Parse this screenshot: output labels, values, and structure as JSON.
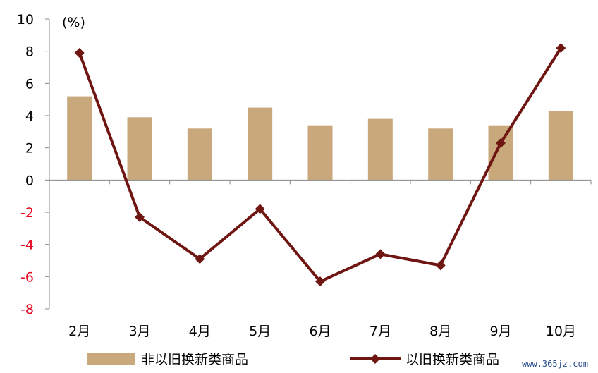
{
  "chart_data": {
    "type": "bar",
    "categories": [
      "2月",
      "3月",
      "4月",
      "5月",
      "6月",
      "7月",
      "8月",
      "9月",
      "10月"
    ],
    "series": [
      {
        "name": "非以旧换新类商品",
        "type": "bar",
        "color": "#c9a97b",
        "values": [
          5.2,
          3.9,
          3.2,
          4.5,
          3.4,
          3.8,
          3.2,
          3.4,
          4.3
        ]
      },
      {
        "name": "以旧换新类商品",
        "type": "line",
        "color": "#6f1612",
        "values": [
          7.9,
          -2.3,
          -4.9,
          -1.8,
          -6.3,
          -4.6,
          -5.3,
          2.3,
          8.2
        ]
      }
    ],
    "unit_label": "(%)",
    "ylim": [
      -8,
      10
    ],
    "yticks": [
      -8,
      -6,
      -4,
      -2,
      0,
      2,
      4,
      6,
      8,
      10
    ],
    "negative_tick_color": "#e8001c",
    "legend_position": "bottom"
  },
  "watermark": "www.365jz.com"
}
